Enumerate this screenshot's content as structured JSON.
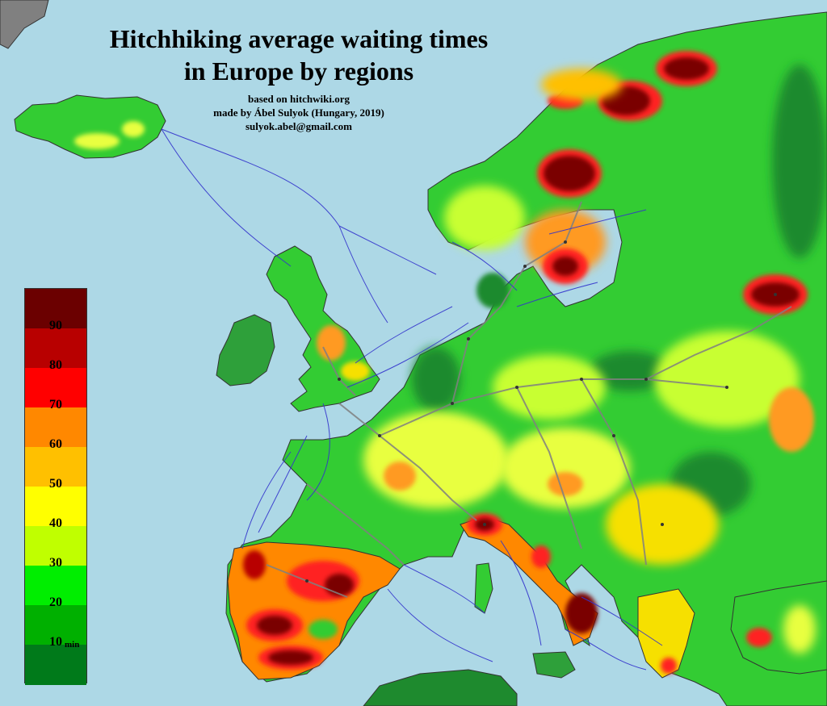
{
  "title_line1": "Hitchhiking average waiting times",
  "title_line2": "in Europe by regions",
  "credit_source": "based on hitchwiki.org",
  "credit_author": "made by Ábel Sulyok (Hungary, 2019)",
  "credit_email": "sulyok.abel@gmail.com",
  "legend": {
    "unit": "min",
    "labels": [
      "90",
      "80",
      "70",
      "60",
      "50",
      "40",
      "30",
      "20",
      "10"
    ],
    "colors": [
      "#6b0000",
      "#b80000",
      "#ff0000",
      "#ff8800",
      "#ffc000",
      "#ffff00",
      "#c0ff00",
      "#00ee00",
      "#00b000",
      "#007a1a"
    ]
  },
  "colors": {
    "sea": "#add8e6",
    "land_low": "#2e9a3a",
    "land_mid": "#33cc33",
    "ferry_lines": "#3333cc",
    "roads": "#808080"
  }
}
